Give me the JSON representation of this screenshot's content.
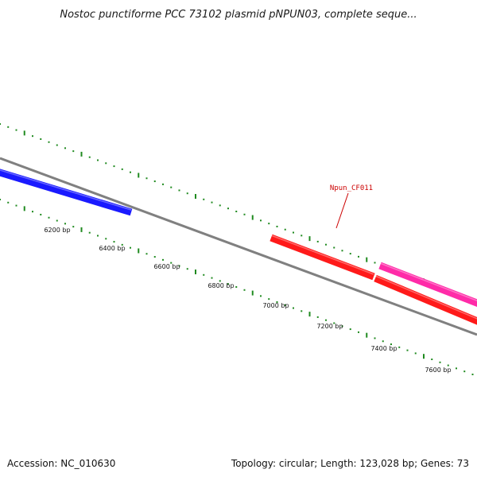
{
  "title": "Nostoc punctiforme PCC 73102 plasmid pNPUN03, complete seque...",
  "footer": {
    "accession": "Accession: NC_010630",
    "summary": "Topology: circular; Length: 123,028 bp; Genes: 73"
  },
  "colors": {
    "backbone": "#808080",
    "ticks": "#1f8a1f",
    "gene_blue": "#1a1aff",
    "gene_red": "#ff1a1a",
    "gene_pink": "#ff2ba8",
    "label": "#cc0000"
  },
  "ticks": [
    {
      "position_bp": 6200,
      "label": "6200 bp"
    },
    {
      "position_bp": 6400,
      "label": "6400 bp"
    },
    {
      "position_bp": 6600,
      "label": "6600 bp"
    },
    {
      "position_bp": 6800,
      "label": "6800 bp"
    },
    {
      "position_bp": 7000,
      "label": "7000 bp"
    },
    {
      "position_bp": 7200,
      "label": "7200 bp"
    },
    {
      "position_bp": 7400,
      "label": "7400 bp"
    },
    {
      "position_bp": 7600,
      "label": "7600 bp"
    }
  ],
  "genes": [
    {
      "name": "",
      "strand": "-",
      "color": "blue"
    },
    {
      "name": "Npun_CF011",
      "strand": "-",
      "color": "red"
    },
    {
      "name": "",
      "strand": "-",
      "color": "red"
    },
    {
      "name": "",
      "strand": "+",
      "color": "pink"
    }
  ]
}
